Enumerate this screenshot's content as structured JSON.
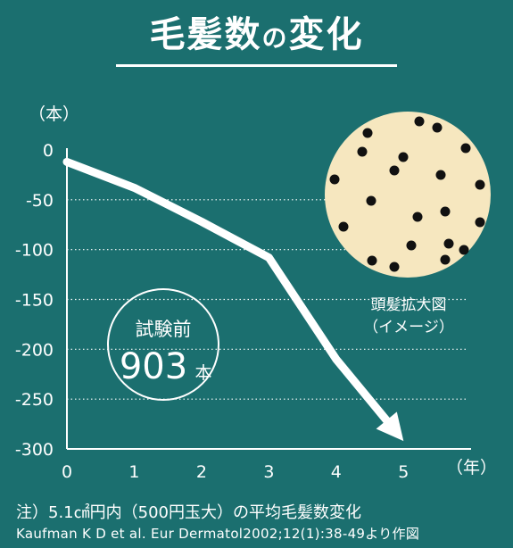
{
  "title": {
    "main": "毛髪数",
    "particle": "の",
    "tail": "変化"
  },
  "chart_data": {
    "type": "line",
    "x": [
      0,
      1,
      2,
      3,
      4,
      5
    ],
    "series": [
      {
        "values": [
          -12,
          -38,
          -72,
          -108,
          -210,
          -292
        ]
      }
    ],
    "xlim": [
      0,
      5.5
    ],
    "ylim": [
      -300,
      0
    ],
    "yticks": [
      "0",
      "-50",
      "-100",
      "-150",
      "-200",
      "-250",
      "-300"
    ],
    "xticks": [
      "0",
      "1",
      "2",
      "3",
      "4",
      "5"
    ],
    "ylabel": "（本）",
    "xlabel": "（年）",
    "grid": "horizontal dotted",
    "baseline": {
      "line1": "試験前",
      "number": "903",
      "unit": "本"
    },
    "inset": {
      "line1": "頭髪拡大図",
      "line2": "（イメージ）"
    }
  },
  "notes": {
    "line1": "注）5.1㎠円内（500円玉大）の平均毛髪数変化",
    "line2": "Kaufman K D et al. Eur Dermatol2002;12(1):38-49より作図"
  },
  "colors": {
    "background": "#1b6f6f",
    "line": "#ffffff",
    "inset_fill": "#f6e7bf",
    "dot": "#111111"
  }
}
